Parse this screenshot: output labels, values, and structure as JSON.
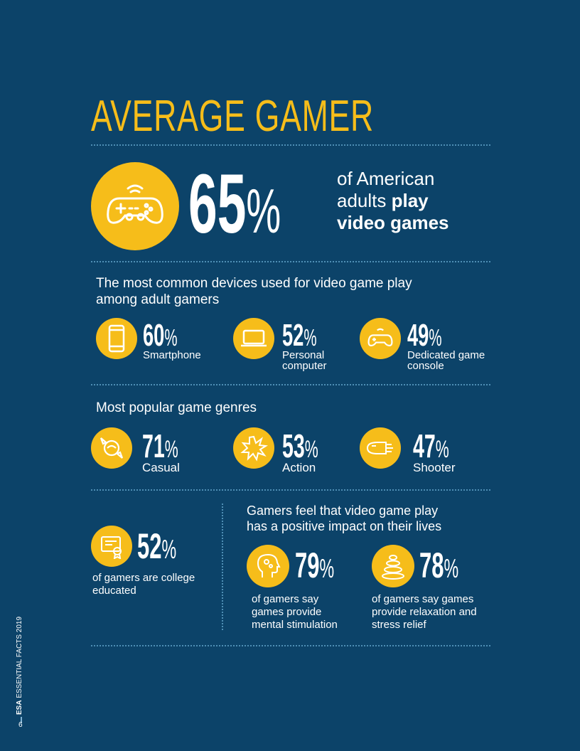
{
  "title": "AVERAGE GAMER",
  "hero": {
    "value": "65",
    "unit": "%",
    "text_line1": "of American",
    "text_line2_a": "adults ",
    "text_line2_b": "play",
    "text_line3": "video games"
  },
  "devices": {
    "heading_line1": "The most common devices used for video game play",
    "heading_line2": "among adult gamers",
    "items": [
      {
        "value": "60",
        "unit": "%",
        "label1": "Smartphone",
        "label2": ""
      },
      {
        "value": "52",
        "unit": "%",
        "label1": "Personal",
        "label2": "computer"
      },
      {
        "value": "49",
        "unit": "%",
        "label1": "Dedicated game",
        "label2": "console"
      }
    ]
  },
  "genres": {
    "heading": "Most popular game genres",
    "items": [
      {
        "value": "71",
        "unit": "%",
        "label": "Casual"
      },
      {
        "value": "53",
        "unit": "%",
        "label": "Action"
      },
      {
        "value": "47",
        "unit": "%",
        "label": "Shooter"
      }
    ]
  },
  "education": {
    "value": "52",
    "unit": "%",
    "label1": "of gamers are college",
    "label2": "educated"
  },
  "impact": {
    "heading_line1": "Gamers feel that video game play",
    "heading_line2": "has a positive impact on their lives",
    "items": [
      {
        "value": "79",
        "unit": "%",
        "label1": "of gamers say",
        "label2": "games provide",
        "label3": "mental stimulation"
      },
      {
        "value": "78",
        "unit": "%",
        "label1": "of gamers say games",
        "label2": "provide relaxation and",
        "label3": "stress relief"
      }
    ]
  },
  "footer": {
    "brand": "ESA",
    "publication": " ESSENTIAL FACTS 2019",
    "page": "6"
  },
  "colors": {
    "background": "#0c4369",
    "accent": "#f6bd1a"
  }
}
